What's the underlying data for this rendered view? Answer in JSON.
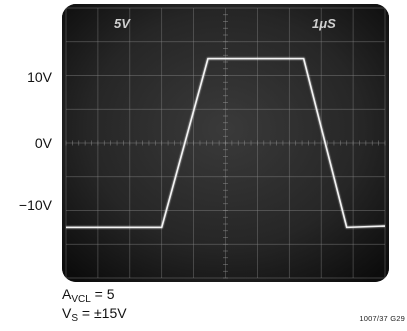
{
  "chart_data": {
    "type": "line",
    "title": "",
    "screen_labels": {
      "vertical_scale": "5V",
      "time_scale": "1μS"
    },
    "y_tick_labels": [
      "10V",
      "0V",
      "−10V"
    ],
    "y_ticks": [
      10,
      0,
      -10
    ],
    "xlim": [
      0,
      10
    ],
    "ylim": [
      -20,
      20
    ],
    "grid": true,
    "series": [
      {
        "x": [
          0,
          3.0,
          4.45,
          7.45,
          8.8,
          10
        ],
        "y": [
          -12.5,
          -12.5,
          12.5,
          12.5,
          -12.5,
          -12.3
        ]
      }
    ],
    "conditions": {
      "avcl_main": "A",
      "avcl_sub": "VCL",
      "avcl_value": " = 5",
      "vs_main": "V",
      "vs_sub": "S",
      "vs_value": " = ±15V"
    },
    "figure_id": "1007/37 G29"
  }
}
